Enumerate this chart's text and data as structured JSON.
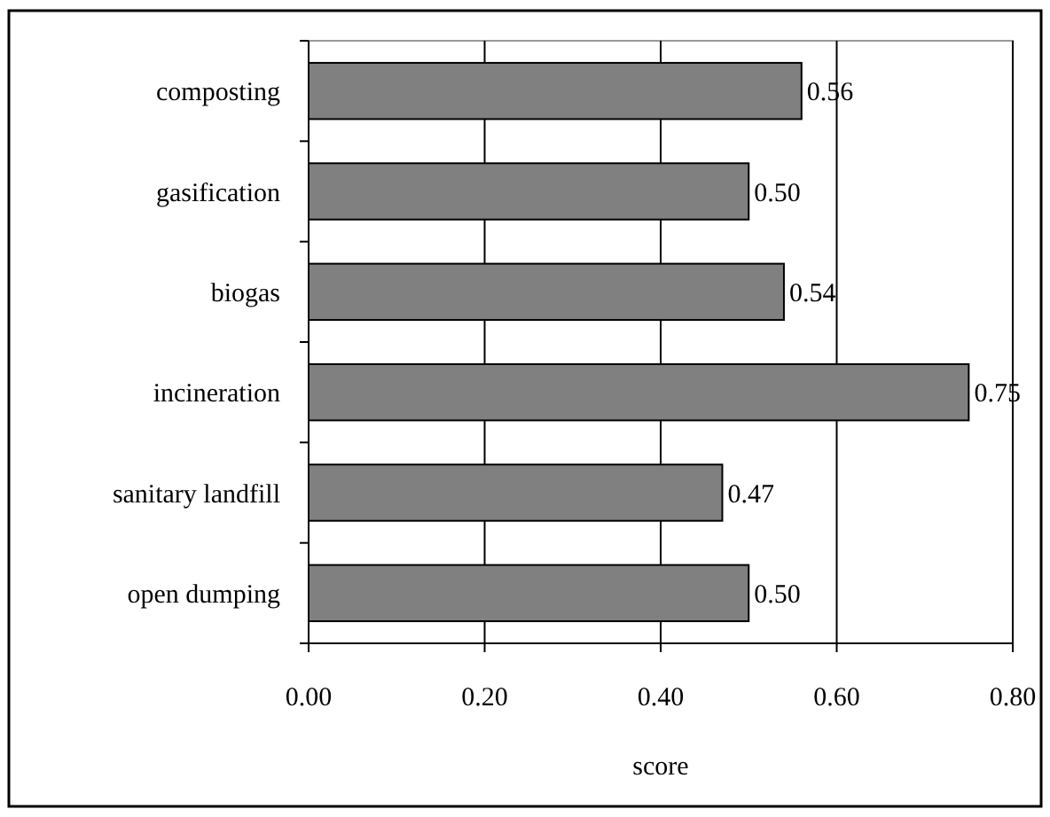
{
  "chart_data": {
    "type": "bar",
    "orientation": "horizontal",
    "xlabel": "score",
    "categories": [
      "composting",
      "gasification",
      "biogas",
      "incineration",
      "sanitary landfill",
      "open dumping"
    ],
    "values": [
      0.56,
      0.5,
      0.54,
      0.75,
      0.47,
      0.5
    ],
    "value_labels": [
      "0.56",
      "0.50",
      "0.54",
      "0.75",
      "0.47",
      "0.50"
    ],
    "color": "#808080",
    "xlim": [
      0,
      0.8
    ],
    "xticks": [
      {
        "value": 0,
        "label": "0.00"
      },
      {
        "value": 0.2,
        "label": "0.20"
      },
      {
        "value": 0.4,
        "label": "0.40"
      },
      {
        "value": 0.6,
        "label": "0.60"
      },
      {
        "value": 0.8,
        "label": "0.80"
      }
    ],
    "grid": "x"
  }
}
